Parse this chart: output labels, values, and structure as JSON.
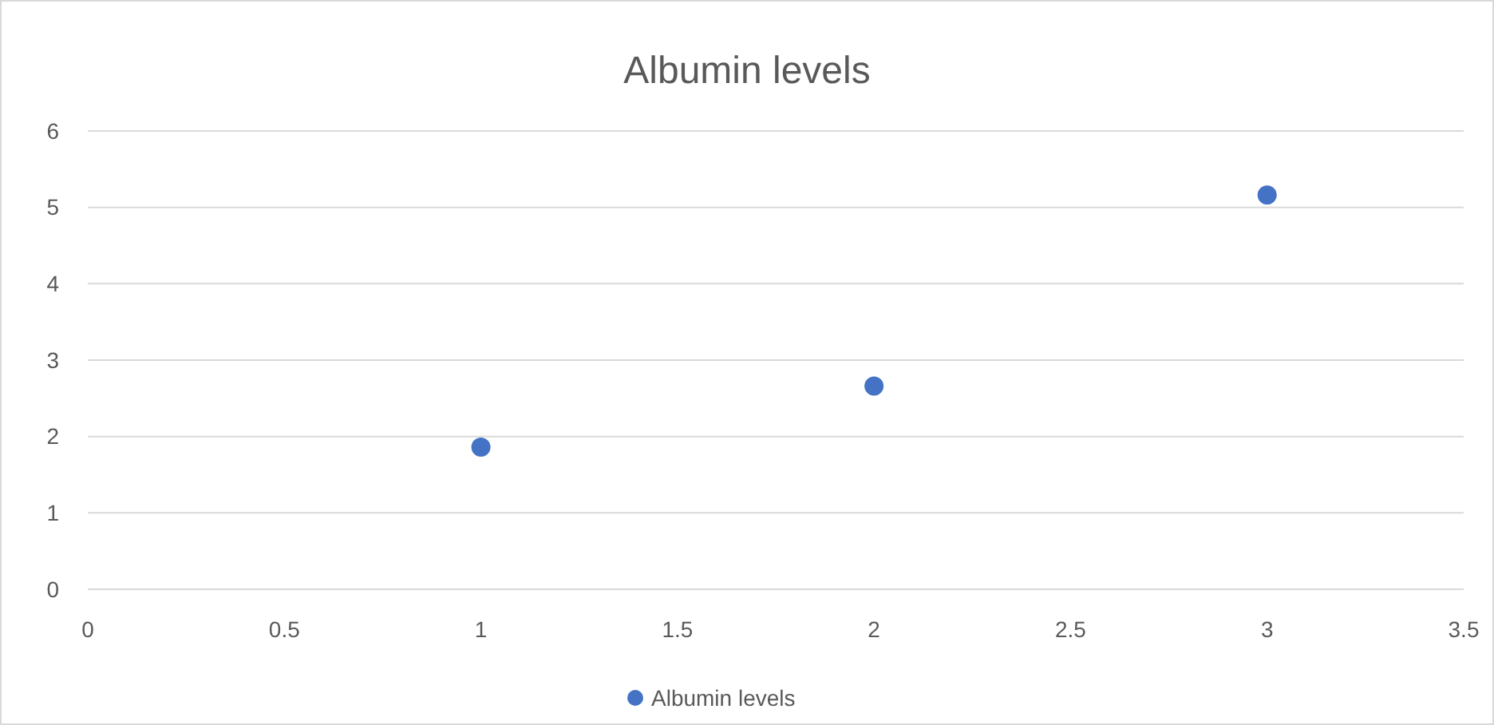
{
  "chart_data": {
    "type": "scatter",
    "title": "Albumin levels",
    "x": [
      1,
      2,
      3
    ],
    "series": [
      {
        "name": "Albumin levels",
        "color": "#4472c4",
        "values": [
          1.86,
          2.66,
          5.16
        ]
      }
    ],
    "xlim": [
      0,
      3.5
    ],
    "xticks": [
      0,
      0.5,
      1,
      1.5,
      2,
      2.5,
      3,
      3.5
    ],
    "ylim": [
      0,
      6
    ],
    "yticks": [
      0,
      1,
      2,
      3,
      4,
      5,
      6
    ],
    "grid": "y",
    "legend": "bottom",
    "marker": "circle"
  }
}
